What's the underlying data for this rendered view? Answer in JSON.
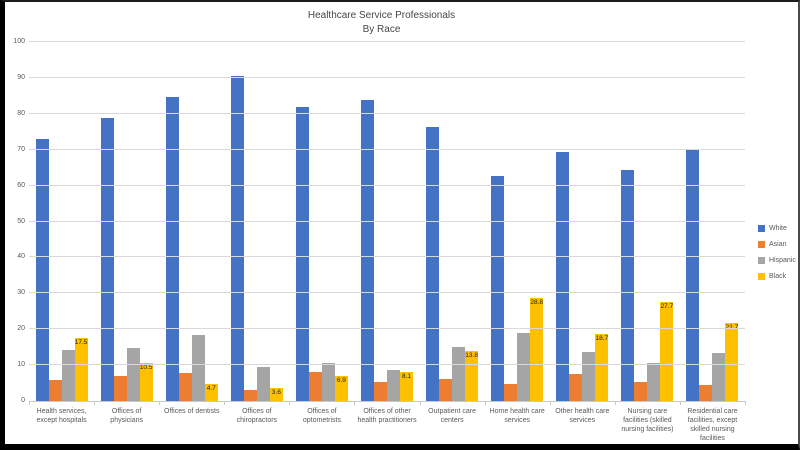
{
  "chart_data": {
    "type": "bar",
    "title_line1": "Healthcare Service Professionals",
    "title_line2": "By Race",
    "xlabel": "",
    "ylabel": "",
    "ylim": [
      0,
      100
    ],
    "yticks": [
      0,
      10,
      20,
      30,
      40,
      50,
      60,
      70,
      80,
      90,
      100
    ],
    "grid": true,
    "legend_position": "right",
    "legend_entries": [
      "White",
      "Asian",
      "Hispanic",
      "Black"
    ],
    "categories": [
      "Health services, except hospitals",
      "Offices of physicians",
      "Offices of dentists",
      "Offices of chiropractors",
      "Offices of optometrists",
      "Offices of other health practitioners",
      "Outpatient care centers",
      "Home health care services",
      "Other health care services",
      "Nursing care facilities (skilled nursing facilities)",
      "Residential care facilities, except skilled nursing facilities"
    ],
    "series": [
      {
        "name": "White",
        "color": "#4472C4",
        "data_labels": false,
        "values": [
          72.9,
          78.7,
          84.8,
          90.4,
          81.8,
          83.8,
          76.4,
          62.6,
          69.4,
          64.4,
          69.8
        ]
      },
      {
        "name": "Asian",
        "color": "#ED7D31",
        "data_labels": false,
        "values": [
          5.8,
          6.9,
          7.9,
          3.0,
          8.0,
          5.3,
          6.0,
          4.8,
          7.4,
          5.2,
          4.4
        ]
      },
      {
        "name": "Hispanic",
        "color": "#A5A5A5",
        "data_labels": false,
        "values": [
          14.3,
          14.8,
          18.3,
          9.4,
          10.5,
          8.7,
          15.1,
          19.0,
          13.7,
          10.5,
          13.5
        ]
      },
      {
        "name": "Black",
        "color": "#FFC000",
        "data_labels": true,
        "values": [
          17.5,
          10.5,
          4.7,
          3.6,
          6.9,
          8.1,
          13.8,
          28.8,
          18.7,
          27.7,
          21.7
        ]
      }
    ]
  }
}
